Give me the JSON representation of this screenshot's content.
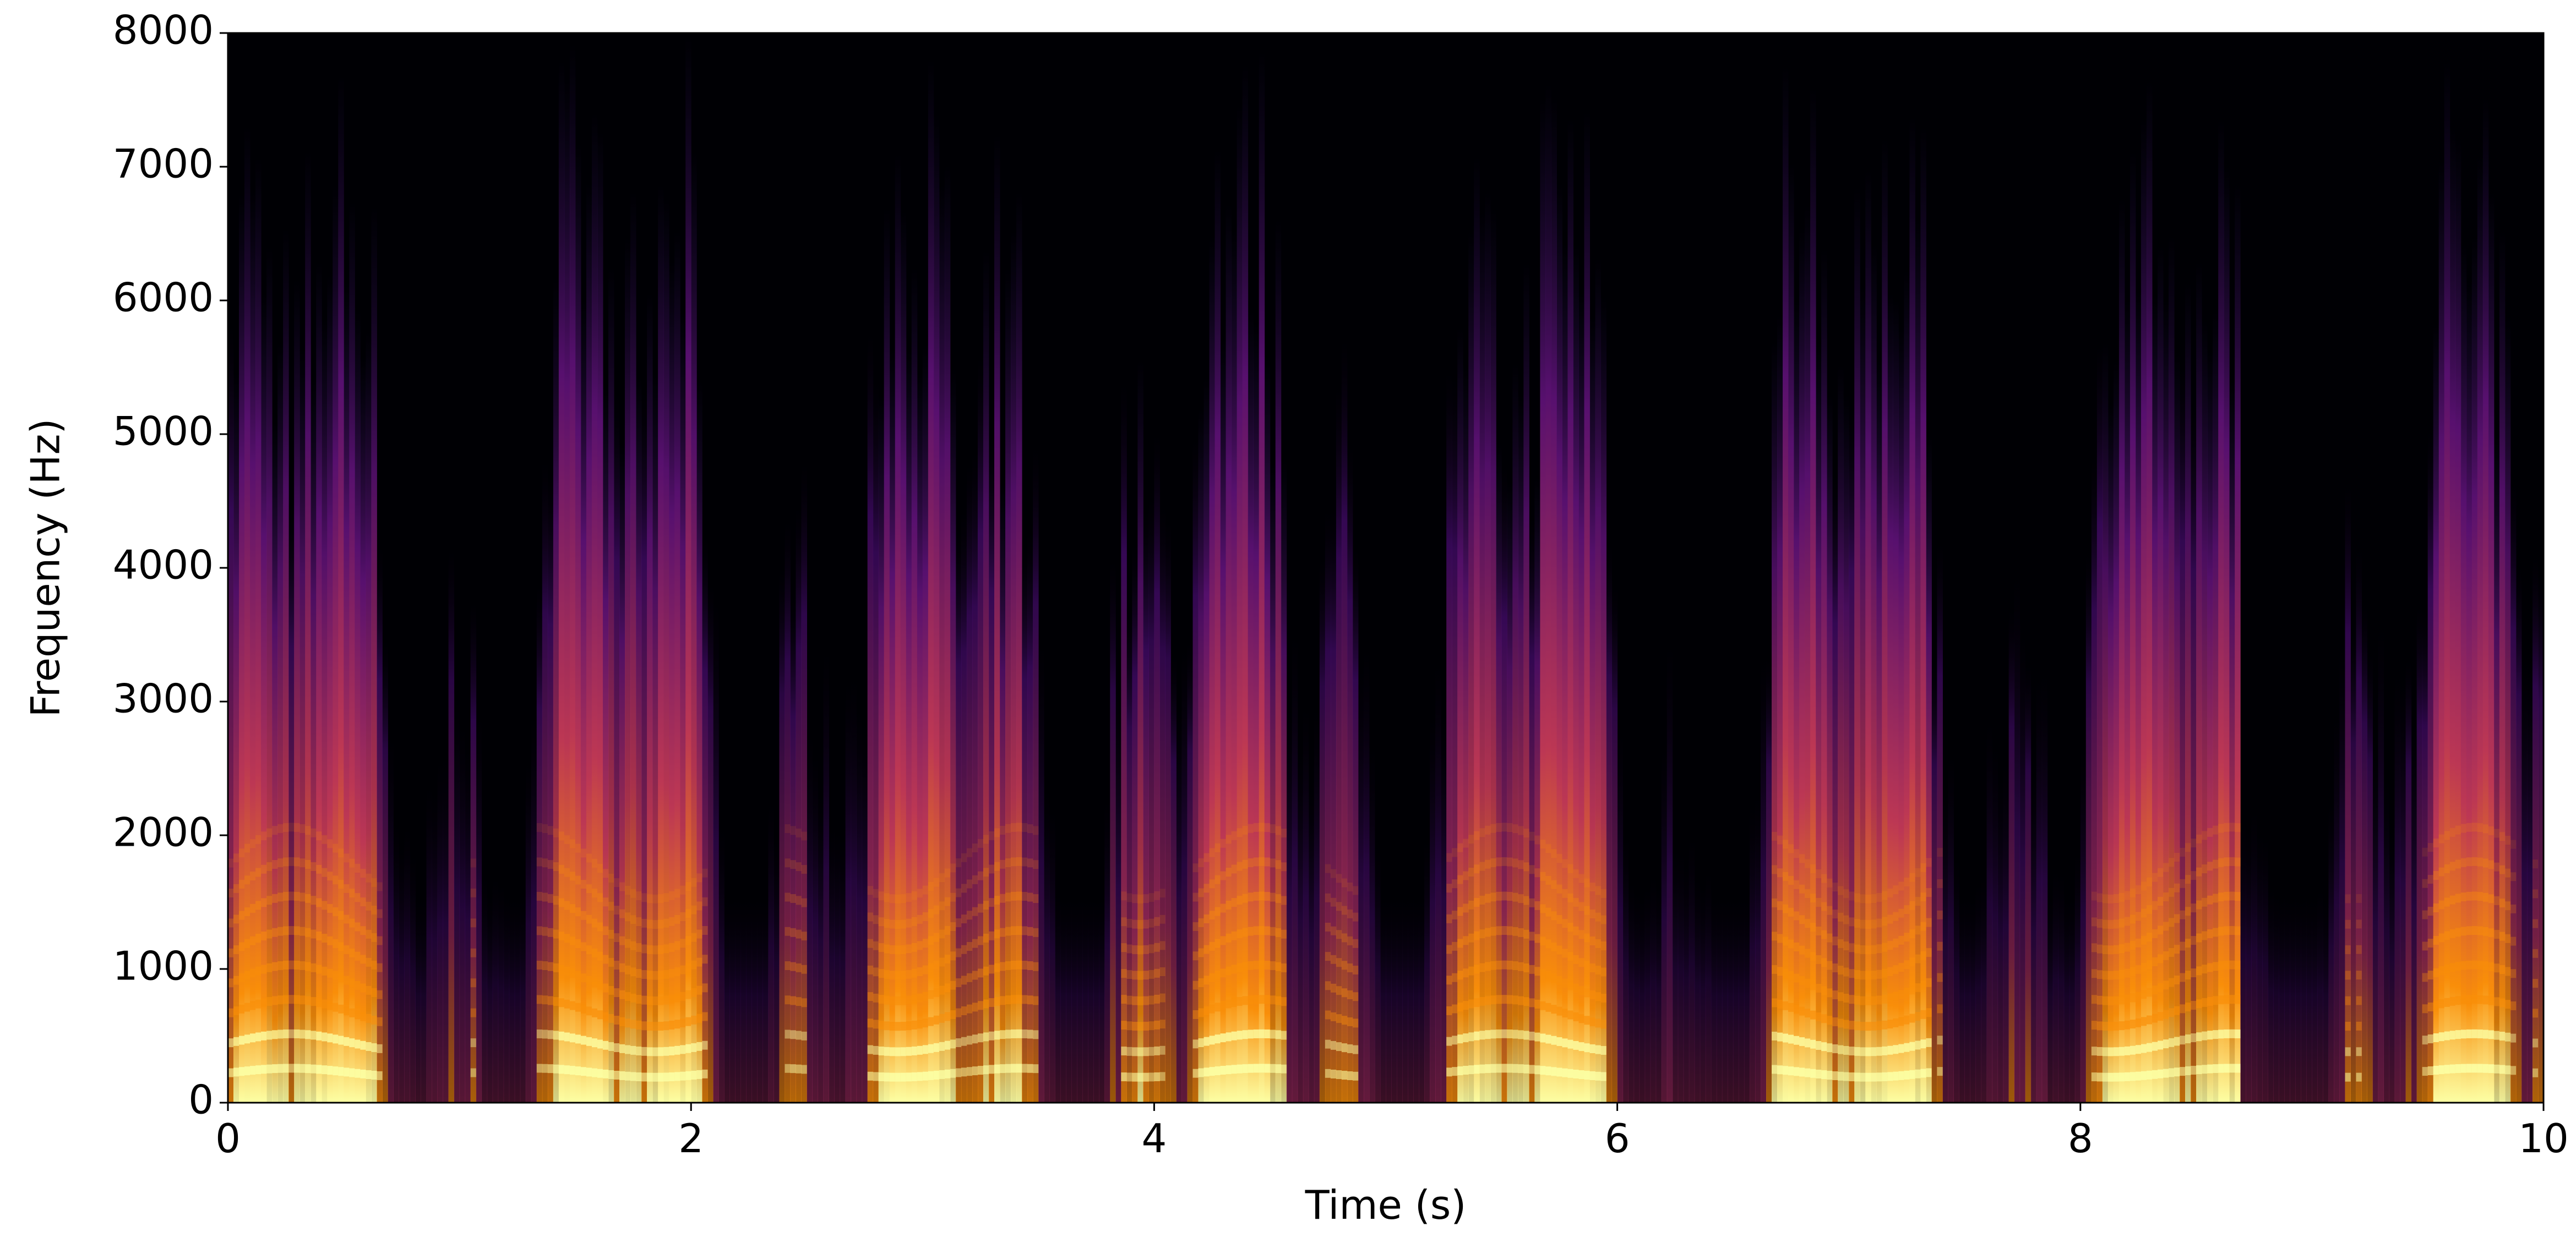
{
  "chart_data": {
    "type": "spectrogram",
    "xlabel": "Time (s)",
    "ylabel": "Frequency (Hz)",
    "xlim": [
      0,
      10
    ],
    "xticks": [
      0,
      2,
      4,
      6,
      8,
      10
    ],
    "ylim": [
      0,
      8000
    ],
    "yticks": [
      0,
      1000,
      2000,
      3000,
      4000,
      5000,
      6000,
      7000,
      8000
    ],
    "colormap": "inferno"
  }
}
